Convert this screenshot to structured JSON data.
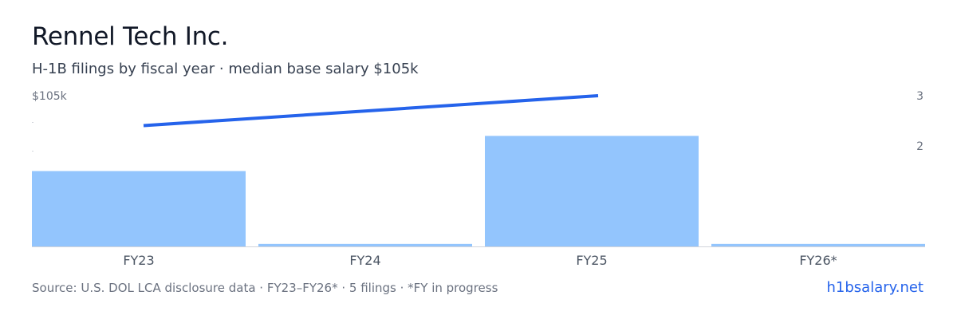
{
  "header": {
    "title": "Rennel Tech Inc.",
    "subtitle": "H-1B filings by fiscal year · median base salary $105k"
  },
  "footer": {
    "source": "Source: U.S. DOL LCA disclosure data · FY23–FY26* · 5 filings · *FY in progress",
    "brand": "h1bsalary.net"
  },
  "chart_data": {
    "type": "bar",
    "categories": [
      "FY23",
      "FY24",
      "FY25",
      "FY26*"
    ],
    "series": [
      {
        "values": [
          1.5,
          0.05,
          2.2,
          0.05
        ]
      },
      {
        "values": [
          103.5,
          null,
          105,
          null
        ]
      }
    ],
    "left_axis": {
      "ticks": [
        {
          "value": 105,
          "label": "$105k"
        }
      ]
    },
    "right_axis": {
      "ticks": [
        {
          "value": 3,
          "label": "3"
        },
        {
          "value": 2,
          "label": "2"
        }
      ],
      "ylim": [
        0,
        3
      ]
    },
    "colors": {
      "bar": "#93c5fd",
      "line": "#2563eb",
      "tick": "#6b7280",
      "axis": "#d1d5db"
    }
  }
}
